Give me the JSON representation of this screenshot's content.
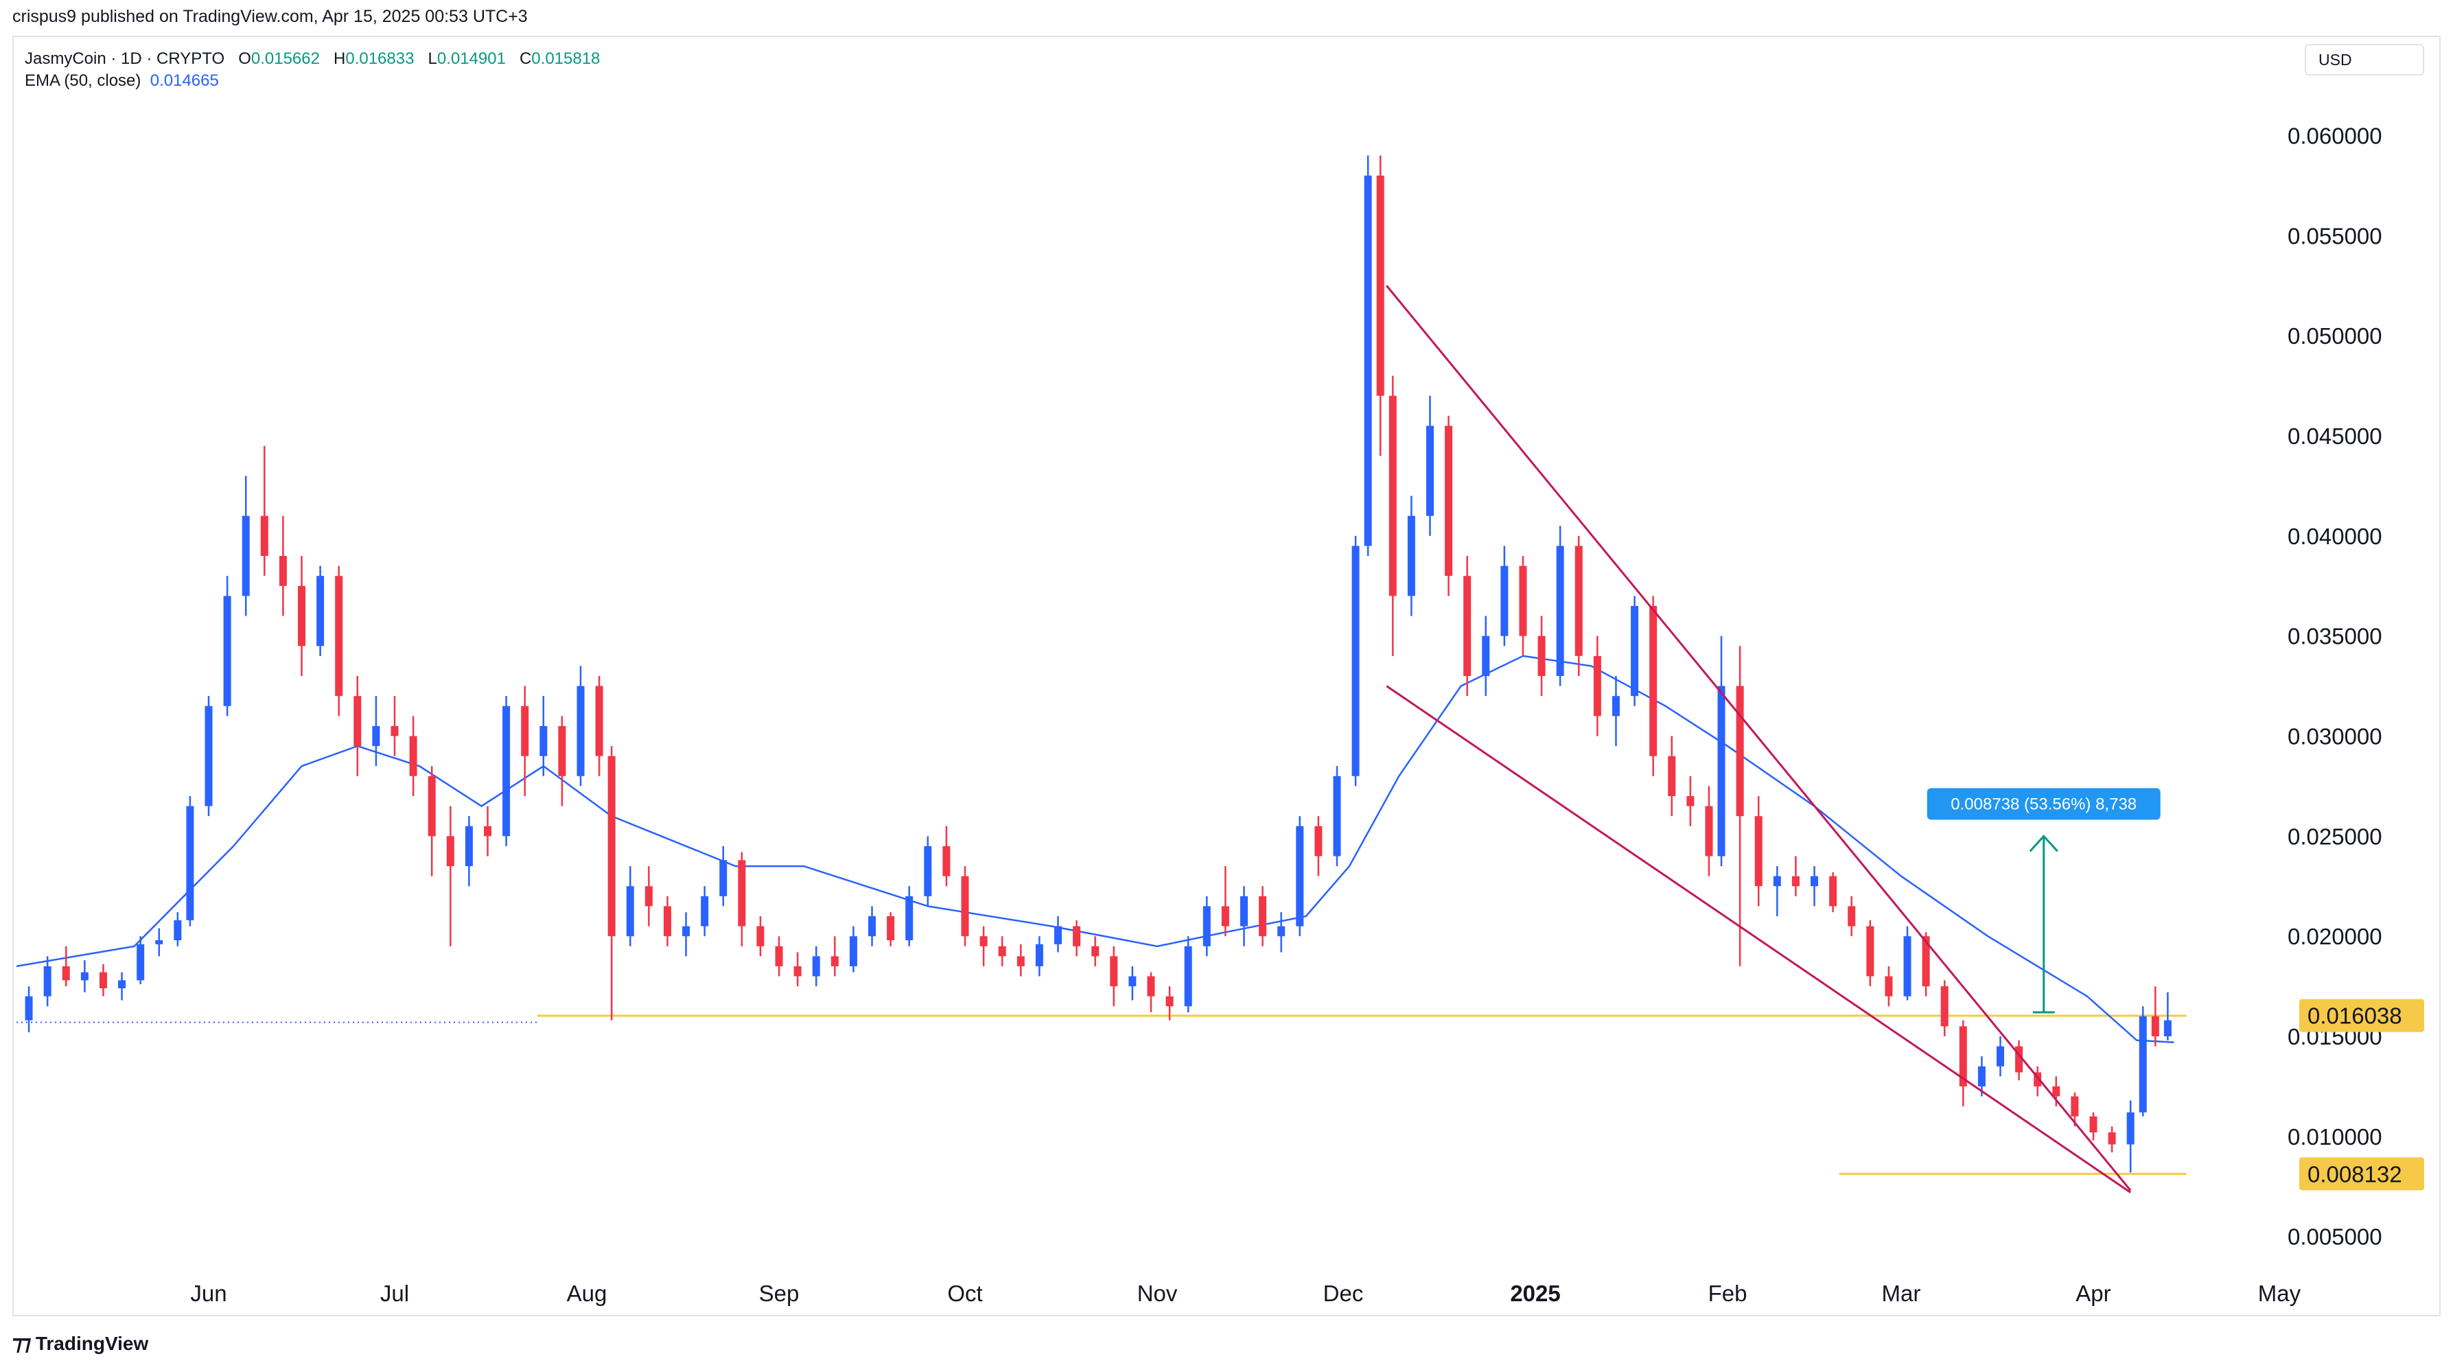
{
  "header": {
    "published": "crispus9 published on TradingView.com, Apr 15, 2025 00:53 UTC+3"
  },
  "legend": {
    "symbol": "JasmyCoin · 1D · CRYPTO",
    "o_label": "O",
    "o_value": "0.015662",
    "h_label": "H",
    "h_value": "0.016833",
    "l_label": "L",
    "l_value": "0.014901",
    "c_label": "C",
    "c_value": "0.015818",
    "ema_label": "EMA (50, close)",
    "ema_value": "0.014665"
  },
  "currency": "USD",
  "footer": {
    "brand": "TradingView",
    "logo_icon": "tradingview-logo-icon"
  },
  "colors": {
    "up": "#2962ff",
    "down": "#f23645",
    "ema": "#2962ff",
    "support": "#f7c948",
    "wedge": "#c2185b",
    "measure": "#089981",
    "label_bg": "#2196f3"
  },
  "chart_data": {
    "type": "candlestick",
    "ylim": [
      0.003,
      0.063
    ],
    "y_ticks": [
      "0.060000",
      "0.055000",
      "0.050000",
      "0.045000",
      "0.040000",
      "0.035000",
      "0.030000",
      "0.025000",
      "0.020000",
      "0.015000",
      "0.010000",
      "0.005000"
    ],
    "x_ticks": [
      "Jun",
      "Jul",
      "Aug",
      "Sep",
      "Oct",
      "Nov",
      "Dec",
      "2025",
      "Feb",
      "Mar",
      "Apr",
      "May"
    ],
    "x_range": [
      "2024-05-01",
      "2025-05-02"
    ],
    "x_ticks_dates": [
      "2024-06-01",
      "2024-07-01",
      "2024-08-01",
      "2024-09-01",
      "2024-10-01",
      "2024-11-01",
      "2024-12-01",
      "2025-01-01",
      "2025-02-01",
      "2025-03-01",
      "2025-04-01",
      "2025-05-01"
    ],
    "price_labels": [
      {
        "text": "0.016038",
        "value": 0.016038
      },
      {
        "text": "0.008132",
        "value": 0.008132
      }
    ],
    "support_lines": [
      {
        "value": 0.01603,
        "from": "2024-07-24",
        "to": "2025-04-16"
      },
      {
        "value": 0.00813,
        "from": "2025-02-19",
        "to": "2025-04-16"
      }
    ],
    "dotted_line": {
      "value": 0.0157,
      "from": "2024-05-01",
      "to": "2024-07-24"
    },
    "wedge_lines": [
      {
        "from": [
          "2024-12-08",
          0.0525
        ],
        "to": [
          "2025-04-07",
          0.0073
        ]
      },
      {
        "from": [
          "2024-12-08",
          0.0325
        ],
        "to": [
          "2025-04-07",
          0.0072
        ]
      }
    ],
    "measure": {
      "label": "0.008738 (53.56%) 8,738",
      "date": "2025-03-24",
      "from_value": 0.0162,
      "to_value": 0.025
    },
    "ema_series": {
      "name": "EMA (50, close)",
      "points": [
        [
          "2024-05-01",
          0.0185
        ],
        [
          "2024-05-20",
          0.0195
        ],
        [
          "2024-06-05",
          0.0245
        ],
        [
          "2024-06-16",
          0.0285
        ],
        [
          "2024-06-25",
          0.0295
        ],
        [
          "2024-07-05",
          0.0285
        ],
        [
          "2024-07-15",
          0.0265
        ],
        [
          "2024-07-25",
          0.0285
        ],
        [
          "2024-08-05",
          0.026
        ],
        [
          "2024-08-25",
          0.0235
        ],
        [
          "2024-09-05",
          0.0235
        ],
        [
          "2024-09-25",
          0.0215
        ],
        [
          "2024-10-15",
          0.0205
        ],
        [
          "2024-11-01",
          0.0195
        ],
        [
          "2024-11-12",
          0.0202
        ],
        [
          "2024-11-25",
          0.021
        ],
        [
          "2024-12-02",
          0.0235
        ],
        [
          "2024-12-10",
          0.028
        ],
        [
          "2024-12-20",
          0.0325
        ],
        [
          "2024-12-30",
          0.034
        ],
        [
          "2025-01-10",
          0.0335
        ],
        [
          "2025-01-22",
          0.0315
        ],
        [
          "2025-02-01",
          0.0295
        ],
        [
          "2025-02-15",
          0.0265
        ],
        [
          "2025-03-01",
          0.023
        ],
        [
          "2025-03-15",
          0.02
        ],
        [
          "2025-03-31",
          0.017
        ],
        [
          "2025-04-08",
          0.0148
        ],
        [
          "2025-04-14",
          0.0147
        ]
      ]
    },
    "candles": [
      [
        "2024-05-03",
        0.0158,
        0.0175,
        0.0152,
        0.017
      ],
      [
        "2024-05-06",
        0.017,
        0.019,
        0.0165,
        0.0185
      ],
      [
        "2024-05-09",
        0.0185,
        0.0195,
        0.0175,
        0.0178
      ],
      [
        "2024-05-12",
        0.0178,
        0.0188,
        0.0172,
        0.0182
      ],
      [
        "2024-05-15",
        0.0182,
        0.0186,
        0.017,
        0.0174
      ],
      [
        "2024-05-18",
        0.0174,
        0.0182,
        0.0168,
        0.0178
      ],
      [
        "2024-05-21",
        0.0178,
        0.02,
        0.0176,
        0.0196
      ],
      [
        "2024-05-24",
        0.0196,
        0.0204,
        0.019,
        0.0198
      ],
      [
        "2024-05-27",
        0.0198,
        0.0212,
        0.0195,
        0.0208
      ],
      [
        "2024-05-29",
        0.0208,
        0.027,
        0.0205,
        0.0265
      ],
      [
        "2024-06-01",
        0.0265,
        0.032,
        0.026,
        0.0315
      ],
      [
        "2024-06-04",
        0.0315,
        0.038,
        0.031,
        0.037
      ],
      [
        "2024-06-07",
        0.037,
        0.043,
        0.036,
        0.041
      ],
      [
        "2024-06-10",
        0.041,
        0.0445,
        0.038,
        0.039
      ],
      [
        "2024-06-13",
        0.039,
        0.041,
        0.036,
        0.0375
      ],
      [
        "2024-06-16",
        0.0375,
        0.039,
        0.033,
        0.0345
      ],
      [
        "2024-06-19",
        0.0345,
        0.0385,
        0.034,
        0.038
      ],
      [
        "2024-06-22",
        0.038,
        0.0385,
        0.031,
        0.032
      ],
      [
        "2024-06-25",
        0.032,
        0.033,
        0.028,
        0.0295
      ],
      [
        "2024-06-28",
        0.0295,
        0.032,
        0.0285,
        0.0305
      ],
      [
        "2024-07-01",
        0.0305,
        0.032,
        0.029,
        0.03
      ],
      [
        "2024-07-04",
        0.03,
        0.031,
        0.027,
        0.028
      ],
      [
        "2024-07-07",
        0.028,
        0.0285,
        0.023,
        0.025
      ],
      [
        "2024-07-10",
        0.025,
        0.0265,
        0.0195,
        0.0235
      ],
      [
        "2024-07-13",
        0.0235,
        0.026,
        0.0225,
        0.0255
      ],
      [
        "2024-07-16",
        0.0255,
        0.0265,
        0.024,
        0.025
      ],
      [
        "2024-07-19",
        0.025,
        0.032,
        0.0245,
        0.0315
      ],
      [
        "2024-07-22",
        0.0315,
        0.0325,
        0.027,
        0.029
      ],
      [
        "2024-07-25",
        0.029,
        0.032,
        0.028,
        0.0305
      ],
      [
        "2024-07-28",
        0.0305,
        0.031,
        0.0265,
        0.028
      ],
      [
        "2024-07-31",
        0.028,
        0.0335,
        0.0275,
        0.0325
      ],
      [
        "2024-08-03",
        0.0325,
        0.033,
        0.028,
        0.029
      ],
      [
        "2024-08-05",
        0.029,
        0.0295,
        0.0158,
        0.02
      ],
      [
        "2024-08-08",
        0.02,
        0.0235,
        0.0195,
        0.0225
      ],
      [
        "2024-08-11",
        0.0225,
        0.0235,
        0.0205,
        0.0215
      ],
      [
        "2024-08-14",
        0.0215,
        0.022,
        0.0195,
        0.02
      ],
      [
        "2024-08-17",
        0.02,
        0.0212,
        0.019,
        0.0205
      ],
      [
        "2024-08-20",
        0.0205,
        0.0225,
        0.02,
        0.022
      ],
      [
        "2024-08-23",
        0.022,
        0.0245,
        0.0215,
        0.0238
      ],
      [
        "2024-08-26",
        0.0238,
        0.0242,
        0.0195,
        0.0205
      ],
      [
        "2024-08-29",
        0.0205,
        0.021,
        0.019,
        0.0195
      ],
      [
        "2024-09-01",
        0.0195,
        0.02,
        0.018,
        0.0185
      ],
      [
        "2024-09-04",
        0.0185,
        0.0192,
        0.0175,
        0.018
      ],
      [
        "2024-09-07",
        0.018,
        0.0195,
        0.0175,
        0.019
      ],
      [
        "2024-09-10",
        0.019,
        0.02,
        0.018,
        0.0185
      ],
      [
        "2024-09-13",
        0.0185,
        0.0205,
        0.0182,
        0.02
      ],
      [
        "2024-09-16",
        0.02,
        0.0215,
        0.0195,
        0.021
      ],
      [
        "2024-09-19",
        0.021,
        0.0212,
        0.0195,
        0.0198
      ],
      [
        "2024-09-22",
        0.0198,
        0.0225,
        0.0195,
        0.022
      ],
      [
        "2024-09-25",
        0.022,
        0.025,
        0.0215,
        0.0245
      ],
      [
        "2024-09-28",
        0.0245,
        0.0255,
        0.0225,
        0.023
      ],
      [
        "2024-10-01",
        0.023,
        0.0235,
        0.0195,
        0.02
      ],
      [
        "2024-10-04",
        0.02,
        0.0205,
        0.0185,
        0.0195
      ],
      [
        "2024-10-07",
        0.0195,
        0.02,
        0.0185,
        0.019
      ],
      [
        "2024-10-10",
        0.019,
        0.0196,
        0.018,
        0.0185
      ],
      [
        "2024-10-13",
        0.0185,
        0.02,
        0.018,
        0.0196
      ],
      [
        "2024-10-16",
        0.0196,
        0.021,
        0.0192,
        0.0205
      ],
      [
        "2024-10-19",
        0.0205,
        0.0208,
        0.019,
        0.0195
      ],
      [
        "2024-10-22",
        0.0195,
        0.02,
        0.0185,
        0.019
      ],
      [
        "2024-10-25",
        0.019,
        0.0195,
        0.0165,
        0.0175
      ],
      [
        "2024-10-28",
        0.0175,
        0.0185,
        0.0168,
        0.018
      ],
      [
        "2024-10-31",
        0.018,
        0.0182,
        0.0162,
        0.017
      ],
      [
        "2024-11-03",
        0.017,
        0.0175,
        0.0158,
        0.0165
      ],
      [
        "2024-11-06",
        0.0165,
        0.02,
        0.0162,
        0.0195
      ],
      [
        "2024-11-09",
        0.0195,
        0.022,
        0.019,
        0.0215
      ],
      [
        "2024-11-12",
        0.0215,
        0.0235,
        0.02,
        0.0205
      ],
      [
        "2024-11-15",
        0.0205,
        0.0225,
        0.0195,
        0.022
      ],
      [
        "2024-11-18",
        0.022,
        0.0225,
        0.0195,
        0.02
      ],
      [
        "2024-11-21",
        0.02,
        0.0212,
        0.0192,
        0.0205
      ],
      [
        "2024-11-24",
        0.0205,
        0.026,
        0.02,
        0.0255
      ],
      [
        "2024-11-27",
        0.0255,
        0.026,
        0.023,
        0.024
      ],
      [
        "2024-11-30",
        0.024,
        0.0285,
        0.0235,
        0.028
      ],
      [
        "2024-12-03",
        0.028,
        0.04,
        0.0275,
        0.0395
      ],
      [
        "2024-12-05",
        0.0395,
        0.059,
        0.039,
        0.058
      ],
      [
        "2024-12-07",
        0.058,
        0.059,
        0.044,
        0.047
      ],
      [
        "2024-12-09",
        0.047,
        0.048,
        0.034,
        0.037
      ],
      [
        "2024-12-12",
        0.037,
        0.042,
        0.036,
        0.041
      ],
      [
        "2024-12-15",
        0.041,
        0.047,
        0.04,
        0.0455
      ],
      [
        "2024-12-18",
        0.0455,
        0.046,
        0.037,
        0.038
      ],
      [
        "2024-12-21",
        0.038,
        0.039,
        0.032,
        0.033
      ],
      [
        "2024-12-24",
        0.033,
        0.036,
        0.032,
        0.035
      ],
      [
        "2024-12-27",
        0.035,
        0.0395,
        0.0345,
        0.0385
      ],
      [
        "2024-12-30",
        0.0385,
        0.039,
        0.034,
        0.035
      ],
      [
        "2025-01-02",
        0.035,
        0.036,
        0.032,
        0.033
      ],
      [
        "2025-01-05",
        0.033,
        0.0405,
        0.0325,
        0.0395
      ],
      [
        "2025-01-08",
        0.0395,
        0.04,
        0.033,
        0.034
      ],
      [
        "2025-01-11",
        0.034,
        0.035,
        0.03,
        0.031
      ],
      [
        "2025-01-14",
        0.031,
        0.033,
        0.0295,
        0.032
      ],
      [
        "2025-01-17",
        0.032,
        0.037,
        0.0315,
        0.0365
      ],
      [
        "2025-01-20",
        0.0365,
        0.037,
        0.028,
        0.029
      ],
      [
        "2025-01-23",
        0.029,
        0.03,
        0.026,
        0.027
      ],
      [
        "2025-01-26",
        0.027,
        0.028,
        0.0255,
        0.0265
      ],
      [
        "2025-01-29",
        0.0265,
        0.0275,
        0.023,
        0.024
      ],
      [
        "2025-01-31",
        0.024,
        0.035,
        0.0235,
        0.0325
      ],
      [
        "2025-02-03",
        0.0325,
        0.0345,
        0.0185,
        0.026
      ],
      [
        "2025-02-06",
        0.026,
        0.027,
        0.0215,
        0.0225
      ],
      [
        "2025-02-09",
        0.0225,
        0.0235,
        0.021,
        0.023
      ],
      [
        "2025-02-12",
        0.023,
        0.024,
        0.022,
        0.0225
      ],
      [
        "2025-02-15",
        0.0225,
        0.0235,
        0.0215,
        0.023
      ],
      [
        "2025-02-18",
        0.023,
        0.0232,
        0.0212,
        0.0215
      ],
      [
        "2025-02-21",
        0.0215,
        0.022,
        0.02,
        0.0205
      ],
      [
        "2025-02-24",
        0.0205,
        0.0208,
        0.0175,
        0.018
      ],
      [
        "2025-02-27",
        0.018,
        0.0185,
        0.0165,
        0.017
      ],
      [
        "2025-03-02",
        0.017,
        0.0205,
        0.0168,
        0.02
      ],
      [
        "2025-03-05",
        0.02,
        0.0202,
        0.017,
        0.0175
      ],
      [
        "2025-03-08",
        0.0175,
        0.0178,
        0.015,
        0.0155
      ],
      [
        "2025-03-11",
        0.0155,
        0.0158,
        0.0115,
        0.0125
      ],
      [
        "2025-03-14",
        0.0125,
        0.014,
        0.012,
        0.0135
      ],
      [
        "2025-03-17",
        0.0135,
        0.015,
        0.013,
        0.0145
      ],
      [
        "2025-03-20",
        0.0145,
        0.0148,
        0.0128,
        0.0132
      ],
      [
        "2025-03-23",
        0.0132,
        0.0135,
        0.012,
        0.0125
      ],
      [
        "2025-03-26",
        0.0125,
        0.013,
        0.0115,
        0.012
      ],
      [
        "2025-03-29",
        0.012,
        0.0122,
        0.0105,
        0.011
      ],
      [
        "2025-04-01",
        0.011,
        0.0112,
        0.0098,
        0.0102
      ],
      [
        "2025-04-04",
        0.0102,
        0.0105,
        0.0092,
        0.0096
      ],
      [
        "2025-04-07",
        0.0096,
        0.0118,
        0.0082,
        0.0112
      ],
      [
        "2025-04-09",
        0.0112,
        0.0165,
        0.011,
        0.016
      ],
      [
        "2025-04-11",
        0.016,
        0.0175,
        0.0145,
        0.015
      ],
      [
        "2025-04-13",
        0.015,
        0.0172,
        0.0148,
        0.0158
      ]
    ]
  }
}
